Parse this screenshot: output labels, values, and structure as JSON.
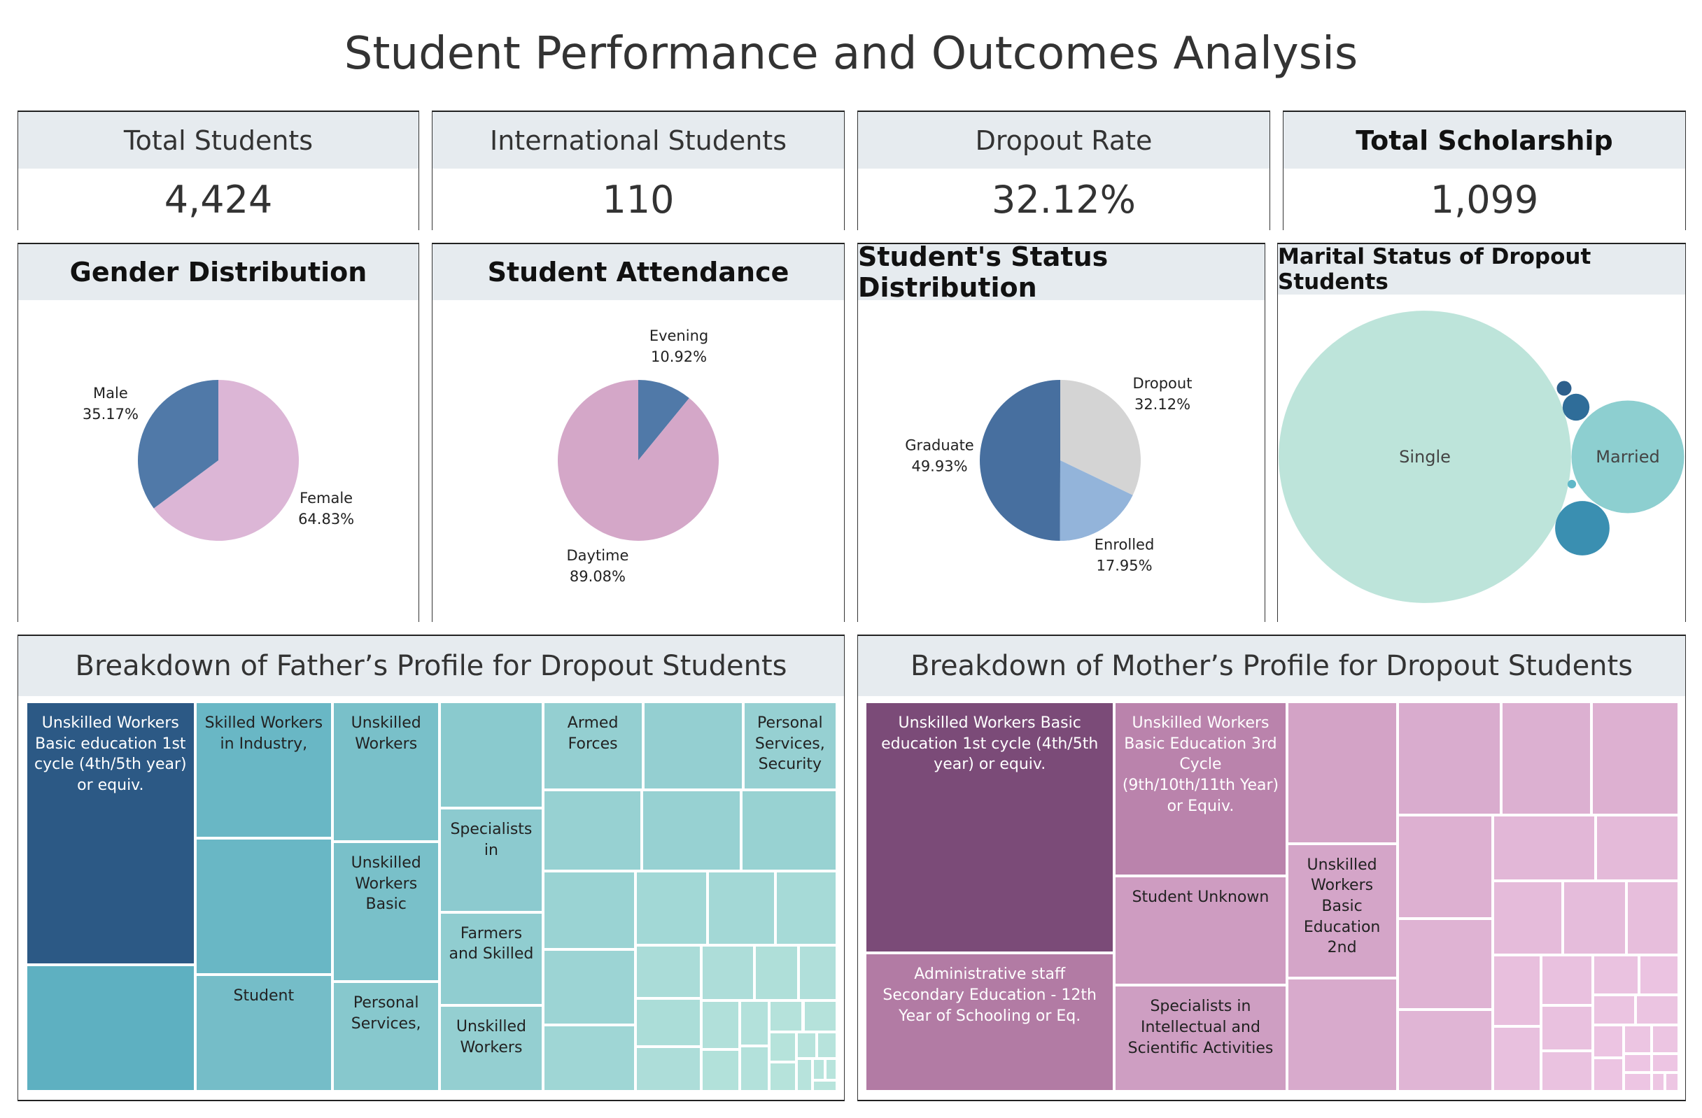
{
  "title": "Student Performance and Outcomes Analysis",
  "kpis": [
    {
      "label": "Total Students",
      "value": "4,424"
    },
    {
      "label": "International Students",
      "value": "110"
    },
    {
      "label": "Dropout Rate",
      "value": "32.12%"
    },
    {
      "label": "Total Scholarship",
      "value": "1,099"
    }
  ],
  "chart_data": [
    {
      "type": "pie",
      "title": "Gender Distribution",
      "categories": [
        "Female",
        "Male"
      ],
      "values": [
        64.83,
        35.17
      ],
      "value_labels": [
        "64.83%",
        "35.17%"
      ],
      "colors": [
        "#dcb6d6",
        "#5079a8"
      ]
    },
    {
      "type": "pie",
      "title": "Student Attendance",
      "categories": [
        "Evening",
        "Daytime"
      ],
      "values": [
        10.92,
        89.08
      ],
      "value_labels": [
        "10.92%",
        "89.08%"
      ],
      "colors": [
        "#5079a8",
        "#d4a7c8"
      ]
    },
    {
      "type": "pie",
      "title": "Student's Status Distribution",
      "categories": [
        "Dropout",
        "Enrolled",
        "Graduate"
      ],
      "values": [
        32.12,
        17.95,
        49.93
      ],
      "value_labels": [
        "32.12%",
        "17.95%",
        "49.93%"
      ],
      "colors": [
        "#d4d4d4",
        "#93b4da",
        "#476f9f"
      ]
    },
    {
      "type": "bubble",
      "title": "Marital Status of Dropout Students",
      "categories": [
        "Single",
        "Married",
        null,
        null,
        null,
        null
      ],
      "values": [
        1184,
        176,
        41,
        10,
        3,
        1
      ],
      "colors": [
        "#bde4da",
        "#8dcfd0",
        "#3a8fb1",
        "#2f6d99",
        "#2d5f8c",
        "#5fb8c8"
      ]
    },
    {
      "type": "treemap",
      "title": "Breakdown of Father’s Profile for Dropout Students",
      "color_range": [
        "#b8e4dc",
        "#5aaec0",
        "#2c5985"
      ],
      "categories": [
        "Unskilled Workers Basic education 1st cycle (4th/5th year) or equiv.",
        null,
        "Skilled Workers in Industry,",
        null,
        "Student",
        "Unskilled Workers",
        "Unskilled Workers Basic",
        "Personal Services,",
        null,
        "Specialists in",
        "Farmers and Skilled",
        "Unskilled Workers",
        "Armed Forces",
        null,
        "Personal Services, Security",
        null,
        null,
        null,
        null,
        null,
        null,
        null,
        null,
        null,
        null,
        null,
        null,
        null,
        null,
        null,
        null,
        null,
        null,
        null,
        null,
        null,
        null,
        null,
        null,
        null,
        null,
        null,
        null,
        null
      ],
      "values": [
        166,
        80,
        70,
        70,
        60,
        56,
        56,
        44,
        41,
        40,
        36,
        33,
        33,
        33,
        31,
        30,
        30,
        29,
        27,
        26,
        23,
        20,
        19,
        17,
        13,
        12,
        11,
        11,
        9,
        8,
        7,
        6,
        5,
        5,
        4,
        4,
        3,
        3,
        2,
        2,
        2,
        1,
        1,
        1
      ]
    },
    {
      "type": "treemap",
      "title": "Breakdown of Mother’s Profile for Dropout Students",
      "color_range": [
        "#edc6e3",
        "#b880a9",
        "#7b4b78"
      ],
      "categories": [
        "Unskilled Workers Basic education 1st cycle (4th/5th year) or equiv.",
        "Administrative staff Secondary Education - 12th Year of Schooling or Eq.",
        "Unskilled Workers Basic Education 3rd Cycle (9th/10th/11th Year) or Equiv.",
        "Student Unknown",
        "Specialists in Intellectual and Scientific Activities",
        null,
        "Unskilled Workers Basic Education 2nd",
        null,
        null,
        null,
        null,
        null,
        null,
        null,
        null,
        null,
        null,
        null,
        null,
        null,
        null,
        null,
        null,
        null,
        null,
        null,
        null,
        null,
        null,
        null,
        null,
        null,
        null,
        null,
        null,
        null,
        null
      ],
      "values": [
        240,
        132,
        115,
        72,
        70,
        60,
        57,
        48,
        45,
        39,
        38,
        38,
        33,
        30,
        26,
        21,
        20,
        18,
        15,
        13,
        12,
        10,
        9,
        8,
        7,
        6,
        5,
        5,
        4,
        4,
        3,
        3,
        2,
        2,
        2,
        1,
        1
      ]
    }
  ]
}
